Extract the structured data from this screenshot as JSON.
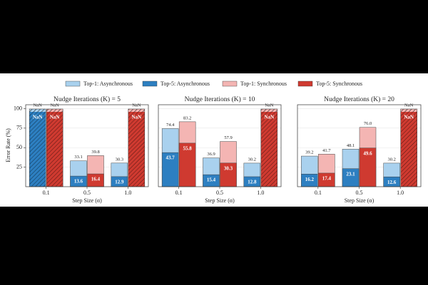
{
  "chart_data": {
    "type": "bar",
    "y_label": "Error Rate (%)",
    "x_label": "Step Size (α)",
    "categories": [
      "0.1",
      "0.5",
      "1.0"
    ],
    "ylim": [
      0,
      105
    ],
    "yticks": [
      25,
      50,
      75,
      100
    ],
    "grid": true,
    "series": [
      {
        "name": "Top-1: Asynchronous",
        "color": "#a9d1ee"
      },
      {
        "name": "Top-5: Asynchronous",
        "color": "#2d7fc1"
      },
      {
        "name": "Top-1: Synchronous",
        "color": "#f4b5b3"
      },
      {
        "name": "Top-5: Synchronous",
        "color": "#cf3a30"
      }
    ],
    "panels": [
      {
        "title": "Nudge Iterations (K) = 5",
        "series": [
          {
            "values": [
              null,
              33.1,
              30.3
            ],
            "value_labels": [
              "NaN",
              "33.1",
              "30.3"
            ]
          },
          {
            "values": [
              null,
              13.6,
              12.9
            ],
            "value_labels": [
              "NaN",
              "13.6",
              "12.9"
            ]
          },
          {
            "values": [
              null,
              39.8,
              null
            ],
            "value_labels": [
              "NaN",
              "39.8",
              "NaN"
            ]
          },
          {
            "values": [
              null,
              16.4,
              null
            ],
            "value_labels": [
              "NaN",
              "16.4",
              "NaN"
            ]
          }
        ]
      },
      {
        "title": "Nudge Iterations (K) = 10",
        "series": [
          {
            "values": [
              74.4,
              36.9,
              30.2
            ],
            "value_labels": [
              "74.4",
              "36.9",
              "30.2"
            ]
          },
          {
            "values": [
              43.7,
              15.4,
              12.8
            ],
            "value_labels": [
              "43.7",
              "15.4",
              "12.8"
            ]
          },
          {
            "values": [
              83.2,
              57.9,
              null
            ],
            "value_labels": [
              "83.2",
              "57.9",
              "NaN"
            ]
          },
          {
            "values": [
              55.8,
              30.3,
              null
            ],
            "value_labels": [
              "55.8",
              "30.3",
              "NaN"
            ]
          }
        ]
      },
      {
        "title": "Nudge Iterations (K) = 20",
        "series": [
          {
            "values": [
              39.2,
              48.1,
              30.2
            ],
            "value_labels": [
              "39.2",
              "48.1",
              "30.2"
            ]
          },
          {
            "values": [
              16.2,
              23.1,
              12.6
            ],
            "value_labels": [
              "16.2",
              "23.1",
              "12.6"
            ]
          },
          {
            "values": [
              41.7,
              76.0,
              null
            ],
            "value_labels": [
              "41.7",
              "76.0",
              "NaN"
            ]
          },
          {
            "values": [
              17.4,
              49.6,
              null
            ],
            "value_labels": [
              "17.4",
              "49.6",
              "NaN"
            ]
          }
        ]
      }
    ]
  }
}
